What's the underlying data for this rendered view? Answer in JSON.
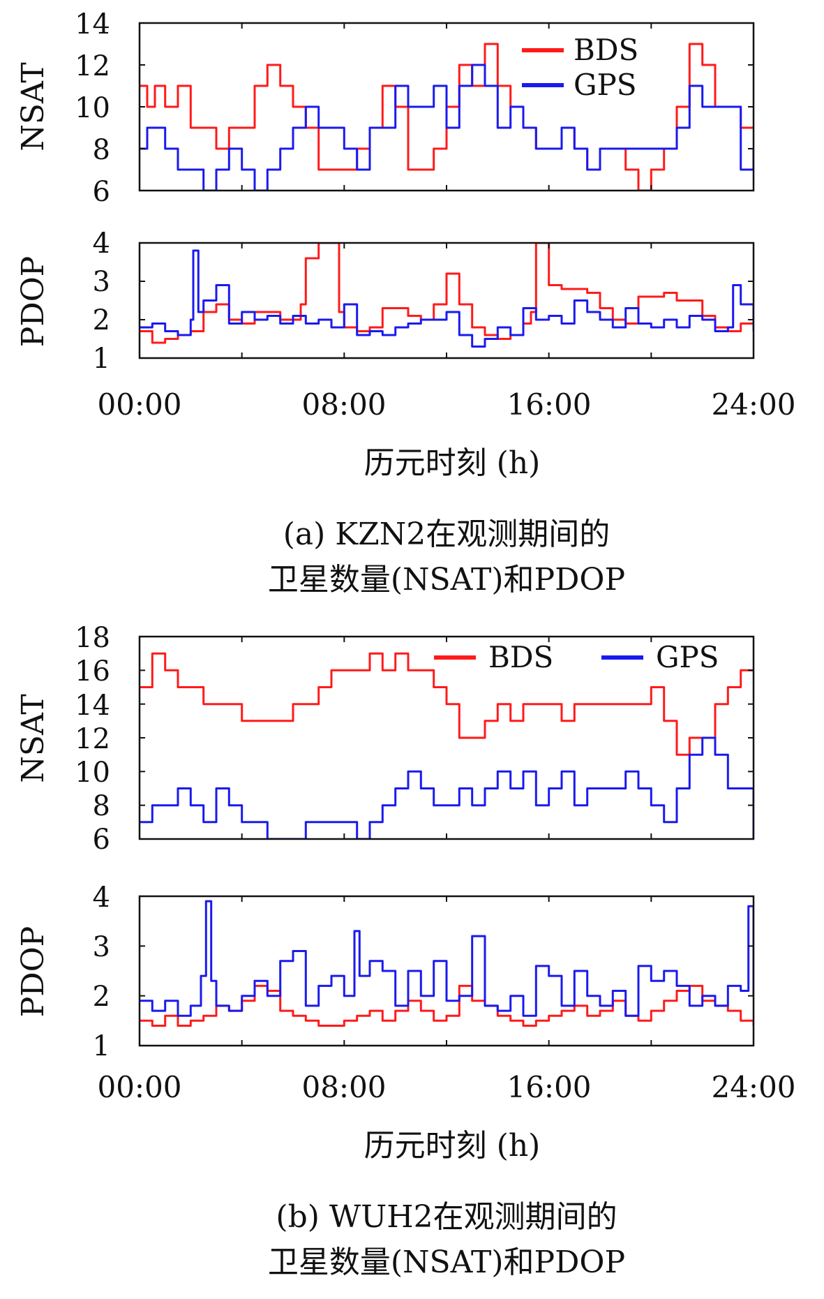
{
  "colors": {
    "bds": "#ff1a1a",
    "gps": "#1a1aee",
    "axis": "#111111"
  },
  "chart_data": [
    {
      "id": "a_nsat",
      "type": "line",
      "ylabel": "NSAT",
      "ylim": [
        6,
        14
      ],
      "yticks": [
        "6",
        "8",
        "10",
        "12",
        "14"
      ],
      "x_unit": "hours",
      "xlim": [
        0,
        24
      ],
      "legend": [
        "BDS",
        "GPS"
      ],
      "legend_position": "top-right",
      "series": [
        {
          "name": "BDS",
          "color": "#ff1a1a",
          "x": [
            0,
            0.3,
            0.6,
            1,
            1.5,
            2,
            2.5,
            3,
            3.5,
            4,
            4.5,
            5,
            5.5,
            6,
            6.5,
            7,
            7.5,
            8,
            8.5,
            9,
            9.5,
            10,
            10.5,
            11,
            11.5,
            12,
            12.5,
            13,
            13.5,
            14,
            14.5,
            15,
            15.5,
            16,
            16.5,
            17,
            17.5,
            18,
            18.5,
            19,
            19.5,
            20,
            20.5,
            21,
            21.5,
            22,
            22.5,
            23,
            23.5,
            24
          ],
          "y": [
            11,
            10,
            11,
            10,
            11,
            9,
            9,
            8,
            9,
            9,
            11,
            12,
            11,
            10,
            9,
            7,
            7,
            7,
            8,
            9,
            11,
            10,
            7,
            7,
            8,
            10,
            12,
            11,
            13,
            11,
            10,
            9,
            8,
            8,
            9,
            8,
            7,
            8,
            8,
            7,
            6,
            7,
            8,
            10,
            13,
            12,
            10,
            10,
            9,
            9
          ]
        },
        {
          "name": "GPS",
          "color": "#1a1aee",
          "x": [
            0,
            0.3,
            0.6,
            1,
            1.5,
            2,
            2.5,
            3,
            3.5,
            4,
            4.5,
            5,
            5.5,
            6,
            6.5,
            7,
            7.5,
            8,
            8.5,
            9,
            9.5,
            10,
            10.5,
            11,
            11.5,
            12,
            12.5,
            13,
            13.5,
            14,
            14.5,
            15,
            15.5,
            16,
            16.5,
            17,
            17.5,
            18,
            18.5,
            19,
            19.5,
            20,
            20.5,
            21,
            21.5,
            22,
            22.5,
            23,
            23.5,
            24
          ],
          "y": [
            8,
            9,
            9,
            8,
            7,
            7,
            6,
            7,
            8,
            7,
            6,
            7,
            8,
            9,
            10,
            9,
            9,
            8,
            7,
            9,
            9,
            11,
            10,
            10,
            11,
            9,
            11,
            12,
            11,
            9,
            10,
            9,
            8,
            8,
            9,
            8,
            7,
            8,
            8,
            8,
            8,
            8,
            8,
            9,
            11,
            10,
            10,
            10,
            7,
            8
          ]
        }
      ]
    },
    {
      "id": "a_pdop",
      "type": "line",
      "ylabel": "PDOP",
      "ylim": [
        1,
        4
      ],
      "yticks": [
        "1",
        "2",
        "3",
        "4"
      ],
      "xlim": [
        0,
        24
      ],
      "series": [
        {
          "name": "BDS",
          "color": "#ff1a1a",
          "x": [
            0,
            0.5,
            1,
            1.5,
            2,
            2.5,
            3,
            3.5,
            4,
            4.5,
            5,
            5.5,
            6,
            6.3,
            6.5,
            7,
            7.5,
            7.8,
            8,
            8.5,
            9,
            9.5,
            10,
            10.5,
            11,
            11.5,
            12,
            12.5,
            13,
            13.5,
            14,
            14.5,
            15,
            15.3,
            15.5,
            16,
            16.5,
            17,
            17.5,
            18,
            18.5,
            19,
            19.5,
            20,
            20.5,
            21,
            21.5,
            22,
            22.5,
            23,
            23.5,
            24
          ],
          "y": [
            1.7,
            1.4,
            1.5,
            1.6,
            1.7,
            2.2,
            2.4,
            2.0,
            1.9,
            2.2,
            2.2,
            2.0,
            2.0,
            2.4,
            3.6,
            4.0,
            4.0,
            2.2,
            1.8,
            1.7,
            1.8,
            2.3,
            2.3,
            2.1,
            2.0,
            2.4,
            3.2,
            2.4,
            1.8,
            1.6,
            1.5,
            1.6,
            1.9,
            2.2,
            4.0,
            2.9,
            2.8,
            2.8,
            2.7,
            2.3,
            2.0,
            1.9,
            2.6,
            2.6,
            2.7,
            2.5,
            2.5,
            2.1,
            1.8,
            1.7,
            1.9,
            2.0
          ]
        },
        {
          "name": "GPS",
          "color": "#1a1aee",
          "x": [
            0,
            0.5,
            1,
            1.5,
            2,
            2.1,
            2.3,
            2.5,
            3,
            3.5,
            4,
            4.5,
            5,
            5.5,
            6,
            6.5,
            7,
            7.5,
            8,
            8.5,
            9,
            9.5,
            10,
            10.5,
            11,
            11.5,
            12,
            12.5,
            13,
            13.5,
            14,
            14.5,
            15,
            15.5,
            16,
            16.5,
            17,
            17.5,
            18,
            18.5,
            19,
            19.5,
            20,
            20.5,
            21,
            21.5,
            22,
            22.5,
            23,
            23.2,
            23.5,
            24
          ],
          "y": [
            1.8,
            1.9,
            1.7,
            1.6,
            2.0,
            3.8,
            2.2,
            2.5,
            2.9,
            1.9,
            2.2,
            2.0,
            2.1,
            1.9,
            2.1,
            1.9,
            2.0,
            1.8,
            2.4,
            1.6,
            1.7,
            1.6,
            1.8,
            1.9,
            2.0,
            2.0,
            2.2,
            1.6,
            1.3,
            1.5,
            1.8,
            1.6,
            2.3,
            2.0,
            2.1,
            1.9,
            2.5,
            2.2,
            2.0,
            1.8,
            2.3,
            1.9,
            1.8,
            2.0,
            1.8,
            2.1,
            2.0,
            1.7,
            1.8,
            2.9,
            2.4,
            1.7
          ]
        }
      ]
    },
    {
      "id": "b_nsat",
      "type": "line",
      "ylabel": "NSAT",
      "ylim": [
        6,
        18
      ],
      "yticks": [
        "6",
        "8",
        "10",
        "12",
        "14",
        "16",
        "18"
      ],
      "xlim": [
        0,
        24
      ],
      "legend": [
        "BDS",
        "GPS"
      ],
      "legend_position": "top",
      "series": [
        {
          "name": "BDS",
          "color": "#ff1a1a",
          "x": [
            0,
            0.5,
            1,
            1.5,
            2,
            2.5,
            3,
            3.5,
            4,
            4.5,
            5,
            5.5,
            6,
            6.5,
            7,
            7.5,
            8,
            8.5,
            9,
            9.5,
            10,
            10.5,
            11,
            11.5,
            12,
            12.5,
            13,
            13.5,
            14,
            14.5,
            15,
            15.5,
            16,
            16.5,
            17,
            17.5,
            18,
            18.5,
            19,
            19.5,
            20,
            20.5,
            21,
            21.5,
            22,
            22.5,
            23,
            23.5,
            24
          ],
          "y": [
            15,
            17,
            16,
            15,
            15,
            14,
            14,
            14,
            13,
            13,
            13,
            13,
            14,
            14,
            15,
            16,
            16,
            16,
            17,
            16,
            17,
            16,
            16,
            15,
            14,
            12,
            12,
            13,
            14,
            13,
            14,
            14,
            14,
            13,
            14,
            14,
            14,
            14,
            14,
            14,
            15,
            13,
            11,
            12,
            12,
            14,
            15,
            16,
            16
          ]
        },
        {
          "name": "GPS",
          "color": "#1a1aee",
          "x": [
            0,
            0.5,
            1,
            1.5,
            2,
            2.5,
            3,
            3.5,
            4,
            4.5,
            5,
            5.5,
            6,
            6.5,
            7,
            7.5,
            8,
            8.5,
            9,
            9.5,
            10,
            10.5,
            11,
            11.5,
            12,
            12.5,
            13,
            13.5,
            14,
            14.5,
            15,
            15.5,
            16,
            16.5,
            17,
            17.5,
            18,
            18.5,
            19,
            19.5,
            20,
            20.5,
            21,
            21.5,
            22,
            22.5,
            23,
            23.5,
            24
          ],
          "y": [
            7,
            8,
            8,
            9,
            8,
            7,
            9,
            8,
            7,
            7,
            6,
            6,
            6,
            7,
            7,
            7,
            7,
            6,
            7,
            8,
            9,
            10,
            9,
            8,
            8,
            9,
            8,
            9,
            10,
            9,
            10,
            8,
            9,
            10,
            8,
            9,
            9,
            9,
            10,
            9,
            8,
            7,
            9,
            11,
            12,
            11,
            9,
            9,
            6
          ]
        }
      ]
    },
    {
      "id": "b_pdop",
      "type": "line",
      "ylabel": "PDOP",
      "ylim": [
        1,
        4
      ],
      "yticks": [
        "1",
        "2",
        "3",
        "4"
      ],
      "xlim": [
        0,
        24
      ],
      "series": [
        {
          "name": "BDS",
          "color": "#ff1a1a",
          "x": [
            0,
            0.5,
            1,
            1.5,
            2,
            2.5,
            3,
            3.5,
            4,
            4.5,
            5,
            5.5,
            6,
            6.5,
            7,
            7.5,
            8,
            8.5,
            9,
            9.5,
            10,
            10.5,
            11,
            11.5,
            12,
            12.5,
            13,
            13.5,
            14,
            14.5,
            15,
            15.5,
            16,
            16.5,
            17,
            17.5,
            18,
            18.5,
            19,
            19.5,
            20,
            20.5,
            21,
            21.5,
            22,
            22.5,
            23,
            23.5,
            24
          ],
          "y": [
            1.5,
            1.4,
            1.6,
            1.4,
            1.5,
            1.6,
            1.8,
            1.7,
            1.9,
            2.2,
            2.1,
            1.7,
            1.6,
            1.5,
            1.4,
            1.4,
            1.5,
            1.6,
            1.7,
            1.5,
            1.7,
            1.9,
            1.7,
            1.5,
            1.6,
            2.2,
            1.9,
            1.8,
            1.6,
            1.5,
            1.4,
            1.5,
            1.6,
            1.7,
            1.8,
            1.6,
            1.7,
            1.9,
            1.6,
            1.5,
            1.7,
            1.9,
            2.1,
            2.2,
            1.9,
            1.8,
            1.7,
            1.5,
            1.4
          ]
        },
        {
          "name": "GPS",
          "color": "#1a1aee",
          "x": [
            0,
            0.5,
            1,
            1.5,
            2,
            2.4,
            2.6,
            2.8,
            3,
            3.5,
            4,
            4.5,
            5,
            5.5,
            6,
            6.5,
            7,
            7.5,
            8,
            8.4,
            8.6,
            9,
            9.5,
            10,
            10.5,
            11,
            11.5,
            12,
            12.5,
            13,
            13.5,
            14,
            14.5,
            15,
            15.5,
            16,
            16.5,
            17,
            17.5,
            18,
            18.5,
            19,
            19.5,
            20,
            20.5,
            21,
            21.5,
            22,
            22.5,
            23,
            23.5,
            23.8,
            24
          ],
          "y": [
            1.9,
            1.7,
            1.9,
            1.6,
            1.8,
            2.4,
            3.9,
            2.3,
            1.8,
            1.7,
            2.0,
            2.3,
            2.0,
            2.7,
            2.9,
            1.8,
            2.2,
            2.4,
            2.0,
            3.3,
            2.4,
            2.7,
            2.5,
            1.8,
            2.5,
            2.0,
            2.7,
            1.9,
            2.0,
            3.2,
            1.8,
            1.7,
            2.0,
            1.6,
            2.6,
            2.4,
            1.8,
            2.5,
            2.0,
            1.8,
            2.1,
            1.6,
            2.6,
            2.3,
            2.5,
            2.2,
            1.8,
            2.0,
            1.8,
            2.2,
            2.1,
            3.8,
            2.0
          ]
        }
      ]
    }
  ],
  "panel_a": {
    "xticks": [
      "00:00",
      "08:00",
      "16:00",
      "24:00"
    ],
    "xlabel": "历元时刻 (h)",
    "caption_line1": "(a) KZN2在观测期间的",
    "caption_line2": "卫星数量(NSAT)和PDOP"
  },
  "panel_b": {
    "xticks": [
      "00:00",
      "08:00",
      "16:00",
      "24:00"
    ],
    "xlabel": "历元时刻 (h)",
    "caption_line1": "(b) WUH2在观测期间的",
    "caption_line2": "卫星数量(NSAT)和PDOP"
  }
}
